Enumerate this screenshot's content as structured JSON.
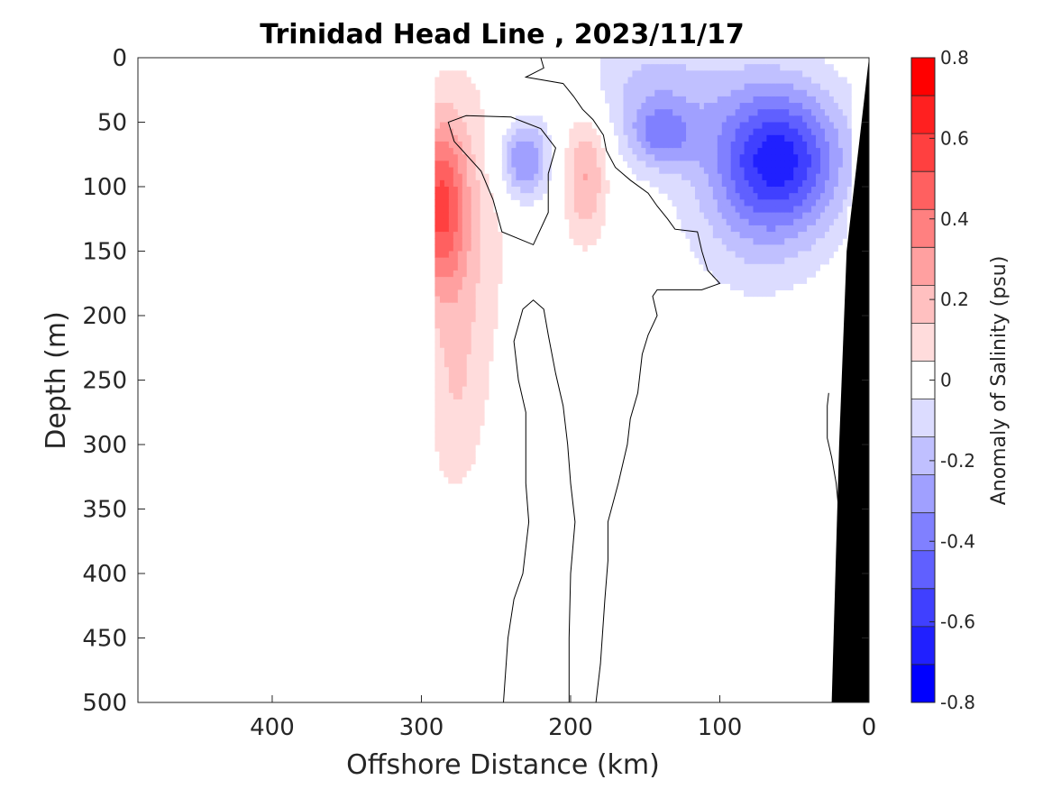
{
  "chart_data": {
    "type": "heatmap",
    "subtype": "filled-contour section",
    "title": "Trinidad Head Line , 2023/11/17",
    "xlabel": "Offshore Distance (km)",
    "ylabel": "Depth (m)",
    "xlim": [
      490,
      0
    ],
    "ylim": [
      0,
      500
    ],
    "x_reversed": true,
    "y_reversed": true,
    "x_ticks": [
      400,
      300,
      200,
      100,
      0
    ],
    "y_ticks": [
      0,
      50,
      100,
      150,
      200,
      250,
      300,
      350,
      400,
      450,
      500
    ],
    "colorbar": {
      "label": "Anomaly of Salinity (psu)",
      "range": [
        -0.8,
        0.8
      ],
      "ticks": [
        "0.8",
        "0.6",
        "0.4",
        "0.2",
        "0",
        "-0.2",
        "-0.4",
        "-0.6",
        "-0.8"
      ],
      "levels": [
        -0.8,
        -0.7,
        -0.6,
        -0.5,
        -0.4,
        -0.3,
        -0.2,
        -0.1,
        0.1,
        0.2,
        0.3,
        0.4,
        0.5,
        0.6,
        0.7,
        0.8
      ],
      "colors": [
        "#0000ff",
        "#2020ff",
        "#4040ff",
        "#6060ff",
        "#8080ff",
        "#a0a0ff",
        "#c0c0ff",
        "#dcdcff",
        "#ffffff",
        "#ffdcdc",
        "#ffc0c0",
        "#ffa0a0",
        "#ff8080",
        "#ff6060",
        "#ff4040",
        "#ff2020",
        "#ff0000"
      ]
    },
    "colors": {
      "axis": "#262626",
      "bathymetry": "#000000",
      "contour_line": "#000000"
    },
    "anomaly_features": [
      {
        "name": "positive core offshore",
        "x_km": 288,
        "depth_m": 115,
        "peak_psu": 0.5
      },
      {
        "name": "positive eddy",
        "x_km": 190,
        "depth_m": 90,
        "peak_psu": 0.3
      },
      {
        "name": "negative eddy",
        "x_km": 232,
        "depth_m": 80,
        "peak_psu": -0.4
      },
      {
        "name": "nearshore fresh core",
        "x_km": 60,
        "depth_m": 78,
        "peak_psu": -0.6
      }
    ],
    "zero_contour": [
      [
        [
          220,
          0
        ],
        [
          218,
          8
        ],
        [
          230,
          15
        ],
        [
          205,
          20
        ],
        [
          198,
          30
        ],
        [
          192,
          40
        ],
        [
          185,
          48
        ],
        [
          178,
          60
        ],
        [
          176,
          72
        ],
        [
          170,
          85
        ],
        [
          160,
          95
        ],
        [
          148,
          105
        ],
        [
          142,
          115
        ],
        [
          135,
          125
        ],
        [
          130,
          133
        ],
        [
          115,
          135
        ],
        [
          112,
          150
        ],
        [
          108,
          165
        ],
        [
          100,
          175
        ],
        [
          112,
          180
        ],
        [
          142,
          180
        ],
        [
          145,
          185
        ],
        [
          142,
          200
        ],
        [
          148,
          215
        ],
        [
          152,
          230
        ],
        [
          155,
          260
        ],
        [
          160,
          280
        ],
        [
          162,
          300
        ],
        [
          168,
          330
        ],
        [
          175,
          360
        ],
        [
          175,
          390
        ],
        [
          177,
          420
        ],
        [
          180,
          470
        ],
        [
          183,
          500
        ]
      ],
      [
        [
          201,
          500
        ],
        [
          201,
          450
        ],
        [
          200,
          400
        ],
        [
          197,
          360
        ],
        [
          200,
          330
        ],
        [
          202,
          300
        ],
        [
          205,
          270
        ],
        [
          210,
          245
        ],
        [
          215,
          215
        ],
        [
          218,
          195
        ],
        [
          225,
          188
        ],
        [
          232,
          195
        ],
        [
          238,
          220
        ],
        [
          235,
          250
        ],
        [
          230,
          275
        ],
        [
          230,
          300
        ],
        [
          230,
          330
        ],
        [
          228,
          360
        ],
        [
          232,
          400
        ],
        [
          238,
          420
        ],
        [
          242,
          450
        ],
        [
          245,
          500
        ]
      ],
      [
        [
          215,
          90
        ],
        [
          210,
          70
        ],
        [
          220,
          55
        ],
        [
          240,
          46
        ],
        [
          270,
          45
        ],
        [
          282,
          50
        ],
        [
          278,
          65
        ],
        [
          260,
          88
        ],
        [
          252,
          110
        ],
        [
          246,
          135
        ],
        [
          225,
          145
        ],
        [
          215,
          120
        ],
        [
          215,
          90
        ]
      ],
      [
        [
          27,
          260
        ],
        [
          28,
          270
        ],
        [
          28,
          295
        ],
        [
          25,
          310
        ],
        [
          22,
          330
        ],
        [
          20,
          355
        ]
      ]
    ]
  }
}
